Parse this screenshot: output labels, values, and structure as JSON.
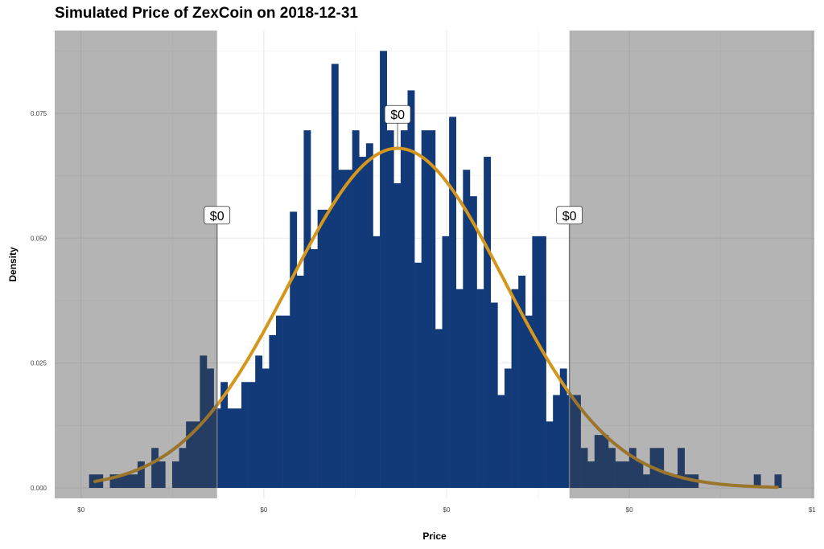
{
  "chart_data": {
    "type": "bar",
    "subtype": "histogram with density curve",
    "title": "Simulated Price of ZexCoin on 2018-12-31",
    "xlabel": "Price",
    "ylabel": "Density",
    "xlim": [
      -0.036,
      1.003
    ],
    "ylim": [
      0,
      0.0916
    ],
    "x_ticks": [
      0,
      0.25,
      0.5,
      0.75,
      1.0
    ],
    "x_tick_labels": [
      "$0",
      "$0",
      "$0",
      "$0",
      "$1"
    ],
    "y_ticks": [
      0,
      0.025,
      0.05,
      0.075
    ],
    "y_tick_labels": [
      "0.000",
      "0.025",
      "0.050",
      "0.075"
    ],
    "grid": true,
    "histogram": {
      "bin_start": 0.011,
      "bin_width": 0.00947,
      "density": [
        0.0027,
        0.0027,
        0,
        0.0027,
        0.0027,
        0.0027,
        0.0027,
        0.0053,
        0,
        0.008,
        0.0053,
        0,
        0.0053,
        0.008,
        0.0133,
        0.0133,
        0.0265,
        0.0239,
        0.0159,
        0.0212,
        0.0159,
        0.0159,
        0.0212,
        0.0212,
        0.0265,
        0.0239,
        0.0306,
        0.0345,
        0.0345,
        0.0553,
        0.0425,
        0.0716,
        0.0478,
        0.0557,
        0.0557,
        0.0849,
        0.0637,
        0.0637,
        0.0716,
        0.0663,
        0.069,
        0.0504,
        0.0875,
        0.0716,
        0.061,
        0.0716,
        0.0796,
        0.0451,
        0.0716,
        0.0716,
        0.0318,
        0.0504,
        0.0743,
        0.0398,
        0.0637,
        0.0584,
        0.0398,
        0.0663,
        0.0371,
        0.0186,
        0.0239,
        0.0398,
        0.0425,
        0.0345,
        0.0504,
        0.0504,
        0.0133,
        0.0186,
        0.0239,
        0.0186,
        0.0186,
        0.008,
        0.0053,
        0.0106,
        0.0106,
        0.008,
        0.0053,
        0.0053,
        0.008,
        0.0053,
        0.0027,
        0.008,
        0.008,
        0.0027,
        0.0027,
        0.008,
        0.0027,
        0.0027,
        0,
        0,
        0,
        0,
        0,
        0,
        0,
        0,
        0.0027,
        0,
        0,
        0.0027
      ]
    },
    "density_curve": {
      "distribution": "normal",
      "mean": 0.433,
      "sd": 0.147,
      "peak_density": 0.068,
      "x_range": [
        0.019,
        0.952
      ]
    },
    "shaded_regions": [
      {
        "from": -0.036,
        "to": 0.186
      },
      {
        "from": 0.668,
        "to": 1.003
      }
    ],
    "annotations": [
      {
        "x": 0.186,
        "y": 0.0546,
        "text": "$0"
      },
      {
        "x": 0.433,
        "y": 0.0748,
        "text": "$0"
      },
      {
        "x": 0.668,
        "y": 0.0546,
        "text": "$0"
      }
    ],
    "colors": {
      "bars": "#123a78",
      "curve": "#d4961c",
      "shade": "#434343",
      "grid": "#ebebeb"
    }
  }
}
